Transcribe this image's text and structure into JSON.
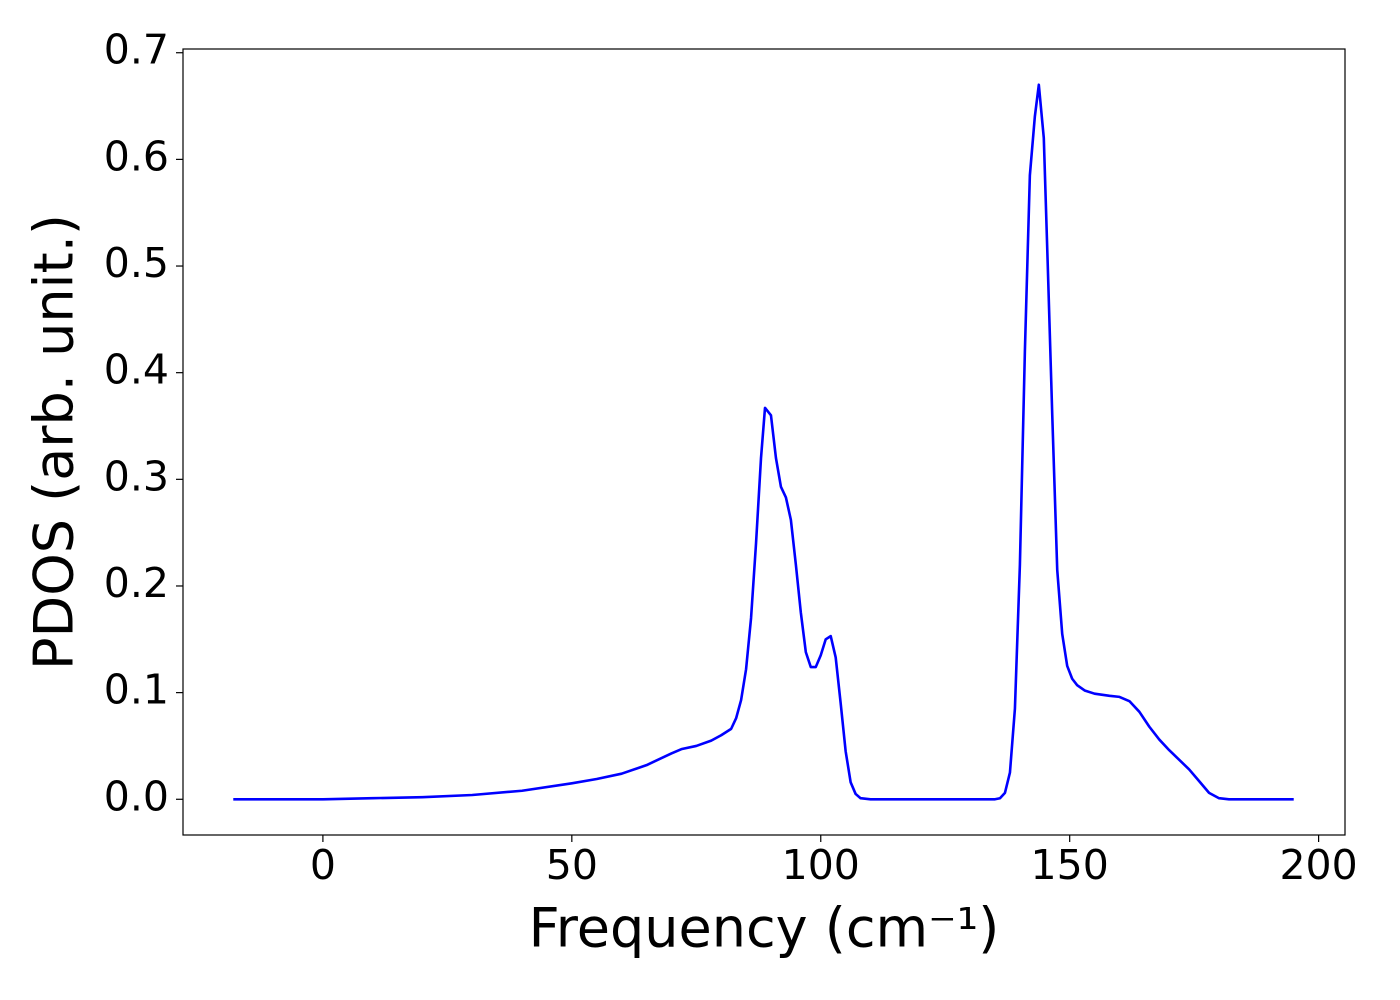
{
  "chart_data": {
    "type": "line",
    "xlabel": "Frequency (cm⁻¹)",
    "ylabel": "PDOS (arb. unit.)",
    "color": "#0000ff",
    "x": [
      -18,
      0,
      10,
      20,
      30,
      40,
      50,
      55,
      60,
      65,
      70,
      72,
      75,
      78,
      80,
      82,
      83,
      84,
      85,
      86,
      87,
      88,
      88.8,
      90,
      91,
      92,
      93,
      94,
      95,
      96,
      97,
      98,
      99,
      100,
      101,
      102,
      103,
      104,
      105,
      106,
      107,
      108,
      110,
      135,
      136,
      137,
      138,
      139,
      140,
      141,
      142,
      143,
      143.8,
      144.8,
      145.6,
      146.5,
      147.5,
      148.5,
      149.5,
      150.5,
      151.5,
      153,
      155,
      158,
      160,
      162,
      164,
      166,
      168,
      170,
      172,
      174,
      176,
      178,
      180,
      182,
      195
    ],
    "values": [
      0,
      0,
      0.001,
      0.002,
      0.004,
      0.008,
      0.015,
      0.019,
      0.024,
      0.032,
      0.043,
      0.047,
      0.05,
      0.055,
      0.06,
      0.066,
      0.076,
      0.093,
      0.122,
      0.17,
      0.24,
      0.32,
      0.367,
      0.36,
      0.32,
      0.293,
      0.283,
      0.262,
      0.22,
      0.175,
      0.138,
      0.124,
      0.124,
      0.135,
      0.15,
      0.153,
      0.133,
      0.09,
      0.045,
      0.016,
      0.005,
      0.001,
      0,
      0,
      0.001,
      0.006,
      0.025,
      0.085,
      0.22,
      0.42,
      0.585,
      0.64,
      0.67,
      0.62,
      0.5,
      0.36,
      0.215,
      0.155,
      0.125,
      0.113,
      0.107,
      0.102,
      0.099,
      0.097,
      0.096,
      0.092,
      0.082,
      0.068,
      0.056,
      0.046,
      0.037,
      0.028,
      0.017,
      0.006,
      0.001,
      0,
      0
    ],
    "xlim": [
      -28.1,
      205.3
    ],
    "ylim": [
      -0.0335,
      0.7035
    ],
    "xticks": [
      0,
      50,
      100,
      150,
      200
    ],
    "yticks": [
      {
        "value": 0,
        "label": "0.0"
      },
      0.1,
      0.2,
      0.3,
      0.4,
      0.5,
      0.6,
      0.7
    ],
    "grid": false
  }
}
